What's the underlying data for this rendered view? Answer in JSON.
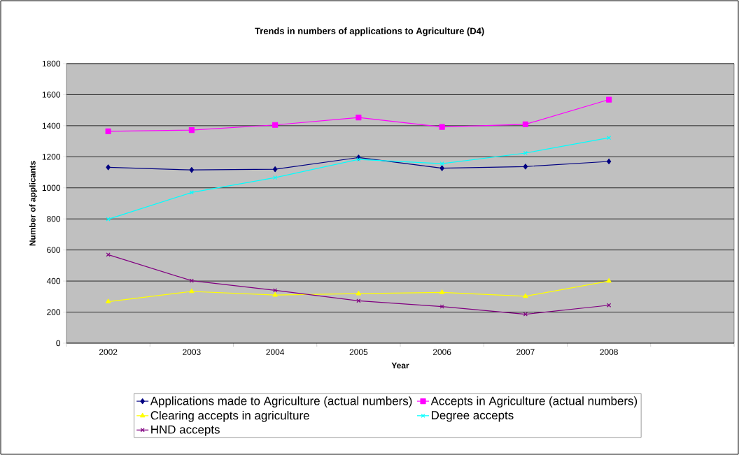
{
  "chart_data": {
    "type": "line",
    "title": "Trends in numbers of applications to Agriculture (D4)",
    "xlabel": "Year",
    "ylabel": "Number of applicants",
    "categories": [
      "2002",
      "2003",
      "2004",
      "2005",
      "2006",
      "2007",
      "2008",
      null
    ],
    "series": [
      {
        "name": "Applications made to Agriculture (actual numbers)",
        "color": "#000080",
        "marker": "diamond",
        "values": [
          1132,
          1115,
          1120,
          1195,
          1127,
          1137,
          1170,
          null
        ]
      },
      {
        "name": "Accepts in Agriculture (actual numbers)",
        "color": "#ff00ff",
        "marker": "square",
        "values": [
          1364,
          1372,
          1405,
          1453,
          1392,
          1409,
          1568,
          null
        ]
      },
      {
        "name": "Clearing accepts in agriculture",
        "color": "#ffff00",
        "marker": "triangle",
        "values": [
          267,
          333,
          310,
          319,
          327,
          302,
          400,
          null
        ]
      },
      {
        "name": "Degree accepts",
        "color": "#00ffff",
        "marker": "cross",
        "values": [
          798,
          970,
          1066,
          1183,
          1156,
          1224,
          1322,
          null
        ]
      },
      {
        "name": "HND accepts",
        "color": "#800080",
        "marker": "cross",
        "values": [
          570,
          402,
          340,
          273,
          236,
          186,
          244,
          null
        ]
      }
    ],
    "ylim": [
      0,
      1800
    ],
    "yticks": [
      0,
      200,
      400,
      600,
      800,
      1000,
      1200,
      1400,
      1600,
      1800
    ],
    "grid": "y",
    "legend": "bottom",
    "line_style": "solid"
  }
}
